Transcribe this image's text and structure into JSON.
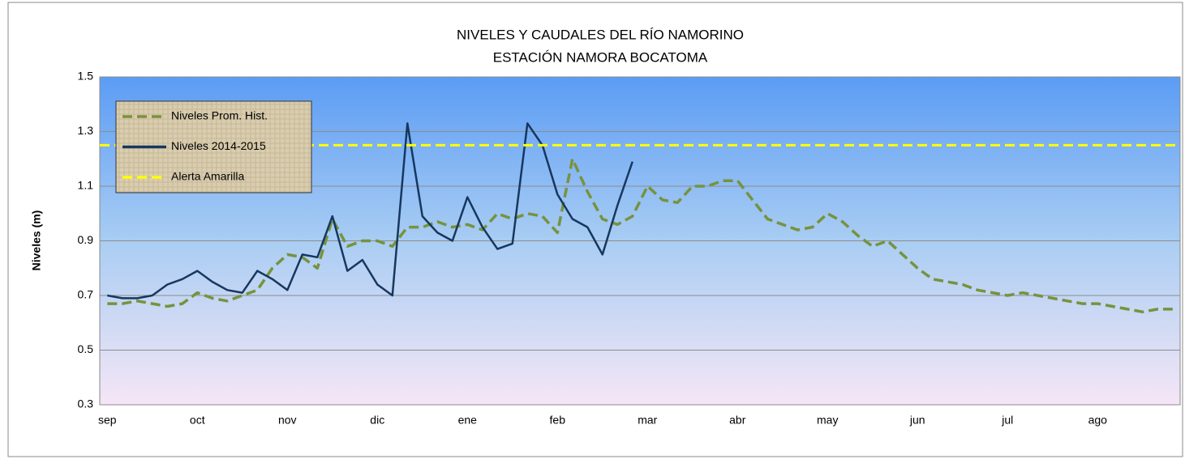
{
  "chart_data": {
    "type": "line",
    "title": "NIVELES  Y CAUDALES  DEL RÍO NAMORINO",
    "subtitle": "ESTACIÓN NAMORA BOCATOMA",
    "y_label": "Niveles (m)",
    "categories": [
      "sep",
      null,
      null,
      null,
      null,
      null,
      "oct",
      null,
      null,
      null,
      null,
      null,
      "nov",
      null,
      null,
      null,
      null,
      null,
      "dic",
      null,
      null,
      null,
      null,
      null,
      "ene",
      null,
      null,
      null,
      null,
      null,
      "feb",
      null,
      null,
      null,
      null,
      null,
      "mar",
      null,
      null,
      null,
      null,
      null,
      "abr",
      null,
      null,
      null,
      null,
      null,
      "may",
      null,
      null,
      null,
      null,
      null,
      "jun",
      null,
      null,
      null,
      null,
      null,
      "jul",
      null,
      null,
      null,
      null,
      null,
      "ago",
      null,
      null,
      null,
      null,
      null
    ],
    "series": [
      {
        "name": "Niveles Prom. Hist.",
        "color": "#77933c",
        "dashed": true,
        "values": [
          0.67,
          0.67,
          0.68,
          0.67,
          0.66,
          0.67,
          0.71,
          0.69,
          0.68,
          0.7,
          0.72,
          0.8,
          0.85,
          0.84,
          0.8,
          0.98,
          0.88,
          0.9,
          0.9,
          0.88,
          0.95,
          0.95,
          0.97,
          0.95,
          0.96,
          0.94,
          1.0,
          0.98,
          1.0,
          0.99,
          0.93,
          1.2,
          1.08,
          0.98,
          0.96,
          0.99,
          1.1,
          1.05,
          1.04,
          1.1,
          1.1,
          1.12,
          1.12,
          1.05,
          0.98,
          0.96,
          0.94,
          0.95,
          1.0,
          0.97,
          0.92,
          0.88,
          0.9,
          0.85,
          0.8,
          0.76,
          0.75,
          0.74,
          0.72,
          0.71,
          0.7,
          0.71,
          0.7,
          0.69,
          0.68,
          0.67,
          0.67,
          0.66,
          0.65,
          0.64,
          0.65,
          0.65
        ]
      },
      {
        "name": "Niveles 2014-2015",
        "color": "#17375e",
        "dashed": false,
        "values": [
          0.7,
          0.69,
          0.69,
          0.7,
          0.74,
          0.76,
          0.79,
          0.75,
          0.72,
          0.71,
          0.79,
          0.76,
          0.72,
          0.85,
          0.84,
          0.99,
          0.79,
          0.83,
          0.74,
          0.7,
          1.33,
          0.99,
          0.93,
          0.9,
          1.06,
          0.95,
          0.87,
          0.89,
          1.33,
          1.25,
          1.07,
          0.98,
          0.95,
          0.85,
          1.03,
          1.19,
          null,
          null,
          null,
          null,
          null,
          null,
          null,
          null,
          null,
          null,
          null,
          null,
          null,
          null,
          null,
          null,
          null,
          null,
          null,
          null,
          null,
          null,
          null,
          null,
          null,
          null,
          null,
          null,
          null,
          null,
          null,
          null,
          null,
          null,
          null,
          null
        ]
      }
    ],
    "reference_lines": [
      {
        "name": "Alerta Amarilla",
        "color": "#ffff00",
        "value": 1.25
      }
    ],
    "ylim": [
      0.3,
      1.5
    ],
    "yticks": [
      0.3,
      0.5,
      0.7,
      0.9,
      1.1,
      1.3,
      1.5
    ],
    "grid": true,
    "legend": "upper left"
  }
}
